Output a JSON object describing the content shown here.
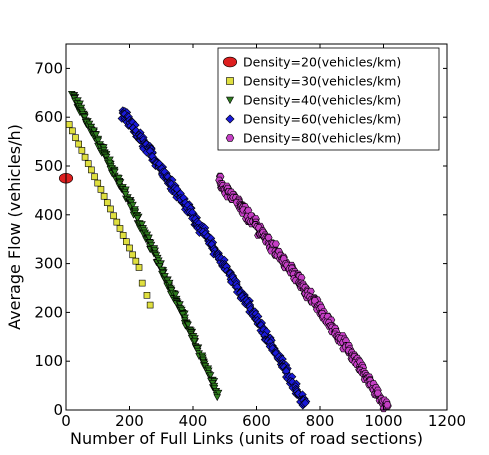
{
  "chart_data": {
    "type": "scatter",
    "xlabel": "Number of Full Links (units of road sections)",
    "ylabel": "Average Flow (vehicles/h)",
    "xlim": [
      0,
      1200
    ],
    "ylim": [
      0,
      750
    ],
    "xticks": [
      "0",
      "200",
      "400",
      "600",
      "800",
      "1000",
      "1200"
    ],
    "yticks": [
      "0",
      "100",
      "200",
      "300",
      "400",
      "500",
      "600",
      "700"
    ],
    "grid": false,
    "legend_position": "top-right",
    "series": [
      {
        "name": "Density=20(vehicles/km)",
        "marker": "ellipse",
        "color": "#dd1f1f",
        "points": [
          [
            0,
            475
          ]
        ]
      },
      {
        "name": "Density=30(vehicles/km)",
        "marker": "square",
        "color": "#dfdf3f",
        "points": [
          [
            10,
            585
          ],
          [
            20,
            572
          ],
          [
            30,
            558
          ],
          [
            40,
            545
          ],
          [
            50,
            532
          ],
          [
            60,
            518
          ],
          [
            70,
            505
          ],
          [
            80,
            492
          ],
          [
            90,
            478
          ],
          [
            100,
            465
          ],
          [
            110,
            452
          ],
          [
            120,
            438
          ],
          [
            130,
            425
          ],
          [
            140,
            412
          ],
          [
            150,
            398
          ],
          [
            160,
            385
          ],
          [
            170,
            372
          ],
          [
            180,
            358
          ],
          [
            190,
            345
          ],
          [
            200,
            332
          ],
          [
            210,
            318
          ],
          [
            220,
            305
          ],
          [
            230,
            292
          ],
          [
            240,
            260
          ],
          [
            255,
            235
          ],
          [
            265,
            215
          ]
        ]
      },
      {
        "name": "Density=40(vehicles/km)",
        "marker": "triangle-down",
        "color": "#2e7d1e",
        "band": {
          "x_start": 20,
          "x_end": 480,
          "y_start": 645,
          "y_end": 28,
          "spread": 16
        }
      },
      {
        "name": "Density=60(vehicles/km)",
        "marker": "diamond",
        "color": "#1a1ad9",
        "band": {
          "x_start": 175,
          "x_end": 755,
          "y_start": 610,
          "y_end": 8,
          "spread": 20
        }
      },
      {
        "name": "Density=80(vehicles/km)",
        "marker": "hexagon",
        "color": "#c43fc4",
        "band": {
          "x_start": 480,
          "x_end": 1010,
          "y_start": 470,
          "y_end": 5,
          "spread": 22
        }
      }
    ]
  }
}
